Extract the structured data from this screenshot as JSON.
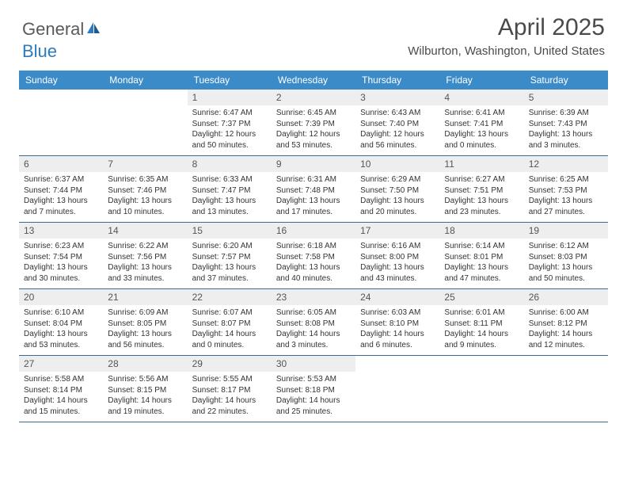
{
  "logo": {
    "text1": "General",
    "text2": "Blue"
  },
  "title": "April 2025",
  "location": "Wilburton, Washington, United States",
  "colors": {
    "header_bg": "#3b8bc9",
    "header_text": "#ffffff",
    "daynum_bg": "#eeeeee",
    "border": "#3b6a94",
    "logo_gray": "#5a5a5a",
    "logo_blue": "#2c7bbf"
  },
  "weekdays": [
    "Sunday",
    "Monday",
    "Tuesday",
    "Wednesday",
    "Thursday",
    "Friday",
    "Saturday"
  ],
  "weeks": [
    [
      {
        "n": "",
        "sr": "",
        "ss": "",
        "dl": ""
      },
      {
        "n": "",
        "sr": "",
        "ss": "",
        "dl": ""
      },
      {
        "n": "1",
        "sr": "Sunrise: 6:47 AM",
        "ss": "Sunset: 7:37 PM",
        "dl": "Daylight: 12 hours and 50 minutes."
      },
      {
        "n": "2",
        "sr": "Sunrise: 6:45 AM",
        "ss": "Sunset: 7:39 PM",
        "dl": "Daylight: 12 hours and 53 minutes."
      },
      {
        "n": "3",
        "sr": "Sunrise: 6:43 AM",
        "ss": "Sunset: 7:40 PM",
        "dl": "Daylight: 12 hours and 56 minutes."
      },
      {
        "n": "4",
        "sr": "Sunrise: 6:41 AM",
        "ss": "Sunset: 7:41 PM",
        "dl": "Daylight: 13 hours and 0 minutes."
      },
      {
        "n": "5",
        "sr": "Sunrise: 6:39 AM",
        "ss": "Sunset: 7:43 PM",
        "dl": "Daylight: 13 hours and 3 minutes."
      }
    ],
    [
      {
        "n": "6",
        "sr": "Sunrise: 6:37 AM",
        "ss": "Sunset: 7:44 PM",
        "dl": "Daylight: 13 hours and 7 minutes."
      },
      {
        "n": "7",
        "sr": "Sunrise: 6:35 AM",
        "ss": "Sunset: 7:46 PM",
        "dl": "Daylight: 13 hours and 10 minutes."
      },
      {
        "n": "8",
        "sr": "Sunrise: 6:33 AM",
        "ss": "Sunset: 7:47 PM",
        "dl": "Daylight: 13 hours and 13 minutes."
      },
      {
        "n": "9",
        "sr": "Sunrise: 6:31 AM",
        "ss": "Sunset: 7:48 PM",
        "dl": "Daylight: 13 hours and 17 minutes."
      },
      {
        "n": "10",
        "sr": "Sunrise: 6:29 AM",
        "ss": "Sunset: 7:50 PM",
        "dl": "Daylight: 13 hours and 20 minutes."
      },
      {
        "n": "11",
        "sr": "Sunrise: 6:27 AM",
        "ss": "Sunset: 7:51 PM",
        "dl": "Daylight: 13 hours and 23 minutes."
      },
      {
        "n": "12",
        "sr": "Sunrise: 6:25 AM",
        "ss": "Sunset: 7:53 PM",
        "dl": "Daylight: 13 hours and 27 minutes."
      }
    ],
    [
      {
        "n": "13",
        "sr": "Sunrise: 6:23 AM",
        "ss": "Sunset: 7:54 PM",
        "dl": "Daylight: 13 hours and 30 minutes."
      },
      {
        "n": "14",
        "sr": "Sunrise: 6:22 AM",
        "ss": "Sunset: 7:56 PM",
        "dl": "Daylight: 13 hours and 33 minutes."
      },
      {
        "n": "15",
        "sr": "Sunrise: 6:20 AM",
        "ss": "Sunset: 7:57 PM",
        "dl": "Daylight: 13 hours and 37 minutes."
      },
      {
        "n": "16",
        "sr": "Sunrise: 6:18 AM",
        "ss": "Sunset: 7:58 PM",
        "dl": "Daylight: 13 hours and 40 minutes."
      },
      {
        "n": "17",
        "sr": "Sunrise: 6:16 AM",
        "ss": "Sunset: 8:00 PM",
        "dl": "Daylight: 13 hours and 43 minutes."
      },
      {
        "n": "18",
        "sr": "Sunrise: 6:14 AM",
        "ss": "Sunset: 8:01 PM",
        "dl": "Daylight: 13 hours and 47 minutes."
      },
      {
        "n": "19",
        "sr": "Sunrise: 6:12 AM",
        "ss": "Sunset: 8:03 PM",
        "dl": "Daylight: 13 hours and 50 minutes."
      }
    ],
    [
      {
        "n": "20",
        "sr": "Sunrise: 6:10 AM",
        "ss": "Sunset: 8:04 PM",
        "dl": "Daylight: 13 hours and 53 minutes."
      },
      {
        "n": "21",
        "sr": "Sunrise: 6:09 AM",
        "ss": "Sunset: 8:05 PM",
        "dl": "Daylight: 13 hours and 56 minutes."
      },
      {
        "n": "22",
        "sr": "Sunrise: 6:07 AM",
        "ss": "Sunset: 8:07 PM",
        "dl": "Daylight: 14 hours and 0 minutes."
      },
      {
        "n": "23",
        "sr": "Sunrise: 6:05 AM",
        "ss": "Sunset: 8:08 PM",
        "dl": "Daylight: 14 hours and 3 minutes."
      },
      {
        "n": "24",
        "sr": "Sunrise: 6:03 AM",
        "ss": "Sunset: 8:10 PM",
        "dl": "Daylight: 14 hours and 6 minutes."
      },
      {
        "n": "25",
        "sr": "Sunrise: 6:01 AM",
        "ss": "Sunset: 8:11 PM",
        "dl": "Daylight: 14 hours and 9 minutes."
      },
      {
        "n": "26",
        "sr": "Sunrise: 6:00 AM",
        "ss": "Sunset: 8:12 PM",
        "dl": "Daylight: 14 hours and 12 minutes."
      }
    ],
    [
      {
        "n": "27",
        "sr": "Sunrise: 5:58 AM",
        "ss": "Sunset: 8:14 PM",
        "dl": "Daylight: 14 hours and 15 minutes."
      },
      {
        "n": "28",
        "sr": "Sunrise: 5:56 AM",
        "ss": "Sunset: 8:15 PM",
        "dl": "Daylight: 14 hours and 19 minutes."
      },
      {
        "n": "29",
        "sr": "Sunrise: 5:55 AM",
        "ss": "Sunset: 8:17 PM",
        "dl": "Daylight: 14 hours and 22 minutes."
      },
      {
        "n": "30",
        "sr": "Sunrise: 5:53 AM",
        "ss": "Sunset: 8:18 PM",
        "dl": "Daylight: 14 hours and 25 minutes."
      },
      {
        "n": "",
        "sr": "",
        "ss": "",
        "dl": ""
      },
      {
        "n": "",
        "sr": "",
        "ss": "",
        "dl": ""
      },
      {
        "n": "",
        "sr": "",
        "ss": "",
        "dl": ""
      }
    ]
  ]
}
